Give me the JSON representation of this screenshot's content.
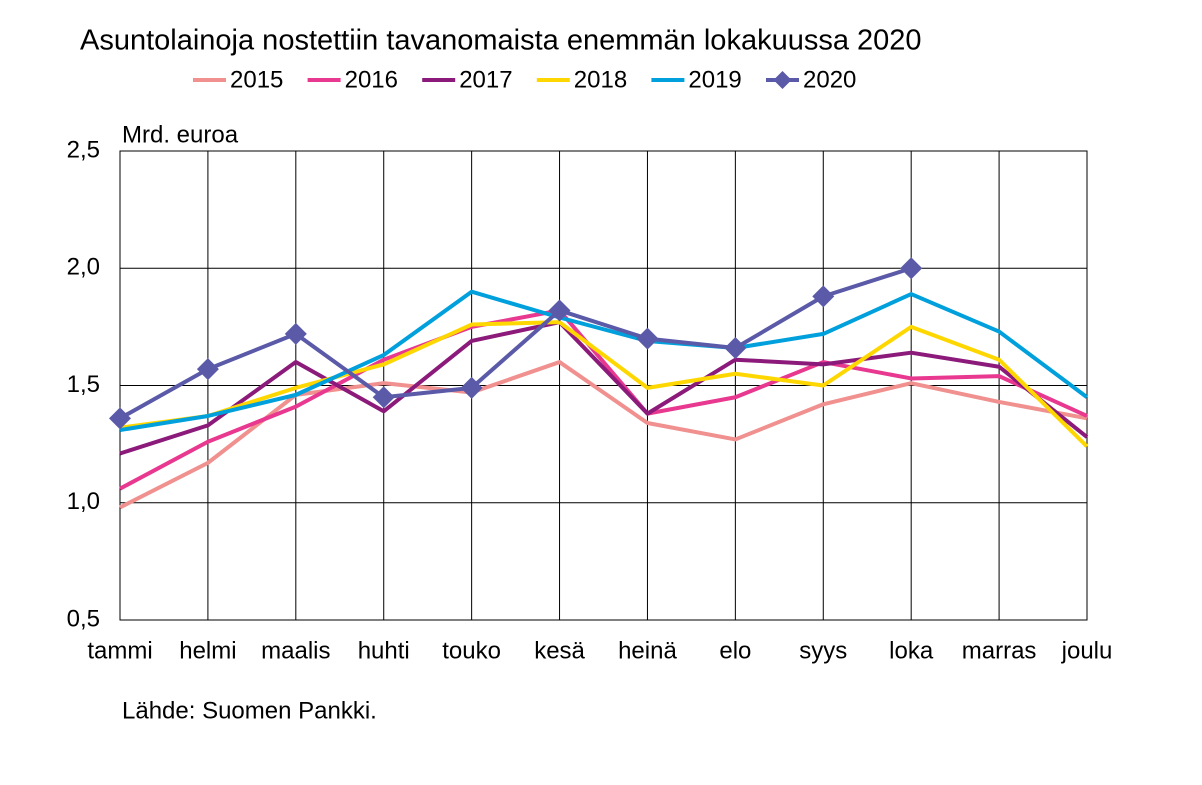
{
  "chart_data": {
    "type": "line",
    "title": "Asuntolainoja nostettiin tavanomaista enemmän lokakuussa 2020",
    "y_axis_label": "Mrd. euroa",
    "source": "Lähde: Suomen Pankki.",
    "categories": [
      "tammi",
      "helmi",
      "maalis",
      "huhti",
      "touko",
      "kesä",
      "heinä",
      "elo",
      "syys",
      "loka",
      "marras",
      "joulu"
    ],
    "series": [
      {
        "name": "2015",
        "color": "#f0908f",
        "values": [
          0.98,
          1.17,
          1.46,
          1.51,
          1.47,
          1.6,
          1.34,
          1.27,
          1.42,
          1.51,
          1.43,
          1.36
        ]
      },
      {
        "name": "2016",
        "color": "#e8388f",
        "values": [
          1.06,
          1.26,
          1.41,
          1.61,
          1.75,
          1.82,
          1.38,
          1.45,
          1.6,
          1.53,
          1.54,
          1.37
        ]
      },
      {
        "name": "2017",
        "color": "#8b1a7a",
        "values": [
          1.21,
          1.33,
          1.6,
          1.39,
          1.69,
          1.77,
          1.38,
          1.61,
          1.59,
          1.64,
          1.58,
          1.28
        ]
      },
      {
        "name": "2018",
        "color": "#ffd700",
        "values": [
          1.32,
          1.37,
          1.49,
          1.59,
          1.76,
          1.77,
          1.49,
          1.55,
          1.5,
          1.75,
          1.61,
          1.24
        ]
      },
      {
        "name": "2019",
        "color": "#00a0dc",
        "values": [
          1.31,
          1.37,
          1.46,
          1.63,
          1.9,
          1.79,
          1.69,
          1.66,
          1.72,
          1.89,
          1.73,
          1.45
        ]
      },
      {
        "name": "2020",
        "color": "#5b5aa8",
        "marker": "diamond",
        "values": [
          1.36,
          1.57,
          1.72,
          1.45,
          1.49,
          1.82,
          1.7,
          1.66,
          1.88,
          2.0,
          null,
          null
        ]
      }
    ],
    "ylim": [
      0.5,
      2.5
    ],
    "yticks": [
      {
        "value": 0.5,
        "label": "0,5"
      },
      {
        "value": 1.0,
        "label": "1,0"
      },
      {
        "value": 1.5,
        "label": "1,5"
      },
      {
        "value": 2.0,
        "label": "2,0"
      },
      {
        "value": 2.5,
        "label": "2,5"
      }
    ],
    "grid": true
  }
}
